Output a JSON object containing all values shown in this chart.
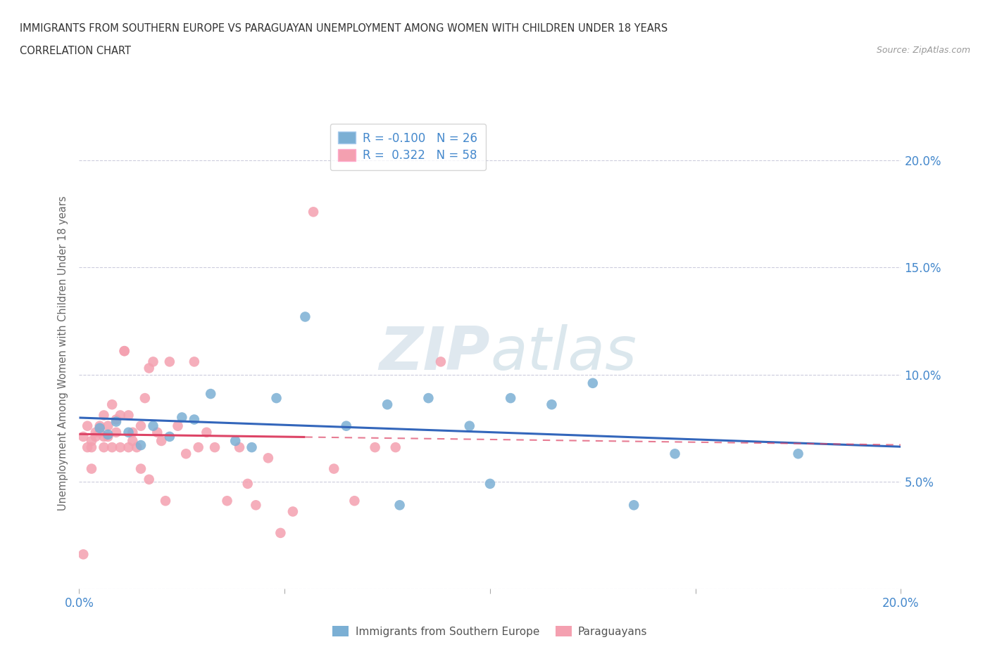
{
  "title_line1": "IMMIGRANTS FROM SOUTHERN EUROPE VS PARAGUAYAN UNEMPLOYMENT AMONG WOMEN WITH CHILDREN UNDER 18 YEARS",
  "title_line2": "CORRELATION CHART",
  "source": "Source: ZipAtlas.com",
  "ylabel": "Unemployment Among Women with Children Under 18 years",
  "xlim": [
    0.0,
    0.2
  ],
  "ylim": [
    0.0,
    0.22
  ],
  "ytick_vals": [
    0.0,
    0.05,
    0.1,
    0.15,
    0.2
  ],
  "ytick_labels_right": [
    "",
    "5.0%",
    "10.0%",
    "15.0%",
    "20.0%"
  ],
  "xtick_vals": [
    0.0,
    0.05,
    0.1,
    0.15,
    0.2
  ],
  "xtick_labels": [
    "0.0%",
    "",
    "",
    "",
    "20.0%"
  ],
  "blue_color": "#7BAFD4",
  "pink_color": "#F4A0B0",
  "blue_line_color": "#3366BB",
  "pink_line_color": "#DD4466",
  "blue_R": -0.1,
  "blue_N": 26,
  "pink_R": 0.322,
  "pink_N": 58,
  "watermark_zip": "ZIP",
  "watermark_atlas": "atlas",
  "background_color": "#FFFFFF",
  "grid_color": "#CCCCDD",
  "tick_color": "#4488CC",
  "legend_label_blue": "Immigrants from Southern Europe",
  "legend_label_pink": "Paraguayans",
  "blue_scatter_x": [
    0.005,
    0.007,
    0.009,
    0.012,
    0.015,
    0.018,
    0.022,
    0.025,
    0.028,
    0.032,
    0.038,
    0.042,
    0.048,
    0.055,
    0.065,
    0.075,
    0.085,
    0.095,
    0.1,
    0.105,
    0.115,
    0.135,
    0.145,
    0.175,
    0.125,
    0.078
  ],
  "blue_scatter_y": [
    0.075,
    0.072,
    0.078,
    0.073,
    0.067,
    0.076,
    0.071,
    0.08,
    0.079,
    0.091,
    0.069,
    0.066,
    0.089,
    0.127,
    0.076,
    0.086,
    0.089,
    0.076,
    0.049,
    0.089,
    0.086,
    0.039,
    0.063,
    0.063,
    0.096,
    0.039
  ],
  "pink_scatter_x": [
    0.001,
    0.002,
    0.002,
    0.003,
    0.003,
    0.004,
    0.004,
    0.005,
    0.005,
    0.006,
    0.006,
    0.006,
    0.007,
    0.007,
    0.008,
    0.008,
    0.009,
    0.009,
    0.01,
    0.01,
    0.011,
    0.011,
    0.012,
    0.012,
    0.013,
    0.013,
    0.014,
    0.015,
    0.015,
    0.016,
    0.017,
    0.017,
    0.018,
    0.019,
    0.02,
    0.021,
    0.022,
    0.024,
    0.026,
    0.028,
    0.029,
    0.031,
    0.033,
    0.036,
    0.039,
    0.041,
    0.043,
    0.046,
    0.049,
    0.052,
    0.057,
    0.062,
    0.067,
    0.072,
    0.077,
    0.088,
    0.001,
    0.003
  ],
  "pink_scatter_y": [
    0.071,
    0.066,
    0.076,
    0.069,
    0.066,
    0.071,
    0.073,
    0.073,
    0.076,
    0.081,
    0.066,
    0.071,
    0.071,
    0.076,
    0.086,
    0.066,
    0.073,
    0.079,
    0.081,
    0.066,
    0.111,
    0.111,
    0.066,
    0.081,
    0.069,
    0.073,
    0.066,
    0.056,
    0.076,
    0.089,
    0.051,
    0.103,
    0.106,
    0.073,
    0.069,
    0.041,
    0.106,
    0.076,
    0.063,
    0.106,
    0.066,
    0.073,
    0.066,
    0.041,
    0.066,
    0.049,
    0.039,
    0.061,
    0.026,
    0.036,
    0.176,
    0.056,
    0.041,
    0.066,
    0.066,
    0.106,
    0.016,
    0.056
  ],
  "pink_solid_xlim": [
    0.0,
    0.055
  ],
  "pink_dash_xlim": [
    0.055,
    0.2
  ]
}
